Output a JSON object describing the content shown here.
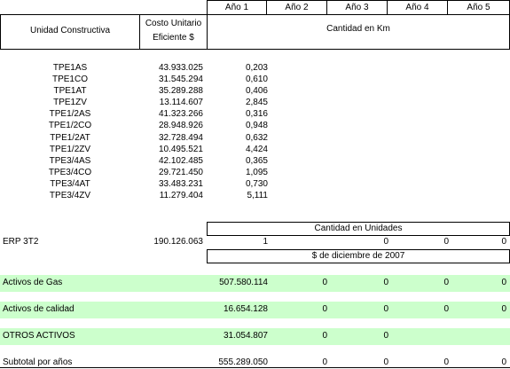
{
  "header": {
    "unit_col": "Unidad Constructiva",
    "cost_col_line1": "Costo Unitario",
    "cost_col_line2": "Eficiente $",
    "years": [
      "Año 1",
      "Año 2",
      "Año 3",
      "Año 4",
      "Año 5"
    ],
    "quantity_km": "Cantidad en Km"
  },
  "rows": [
    {
      "name": "TPE1AS",
      "cost": "43.933.025",
      "km": "0,203"
    },
    {
      "name": "TPE1CO",
      "cost": "31.545.294",
      "km": "0,610"
    },
    {
      "name": "TPE1AT",
      "cost": "35.289.288",
      "km": "0,406"
    },
    {
      "name": "TPE1ZV",
      "cost": "13.114.607",
      "km": "2,845"
    },
    {
      "name": "TPE1/2AS",
      "cost": "41.323.266",
      "km": "0,316"
    },
    {
      "name": "TPE1/2CO",
      "cost": "28.948.926",
      "km": "0,948"
    },
    {
      "name": "TPE1/2AT",
      "cost": "32.728.494",
      "km": "0,632"
    },
    {
      "name": "TPE1/2ZV",
      "cost": "10.495.521",
      "km": "4,424"
    },
    {
      "name": "TPE3/4AS",
      "cost": "42.102.485",
      "km": "0,365"
    },
    {
      "name": "TPE3/4CO",
      "cost": "29.721.450",
      "km": "1,095"
    },
    {
      "name": "TPE3/4AT",
      "cost": "33.483.231",
      "km": "0,730"
    },
    {
      "name": "TPE3/4ZV",
      "cost": "11.279.404",
      "km": "5,111"
    }
  ],
  "units_label": "Cantidad en Unidades",
  "erp": {
    "name": "ERP 3T2",
    "cost": "190.126.063",
    "y1": "1",
    "y3": "0",
    "y4": "0",
    "y5": "0"
  },
  "date_label": "$ de diciembre de 2007",
  "summary": [
    {
      "label": "Activos de Gas",
      "total": "507.580.114",
      "y2": "0",
      "y3": "0",
      "y4": "0",
      "y5": "0"
    },
    {
      "label": "Activos de calidad",
      "total": "16.654.128",
      "y2": "0",
      "y3": "0",
      "y4": "0",
      "y5": "0"
    },
    {
      "label": "OTROS ACTIVOS",
      "total": "31.054.807",
      "y2": "0",
      "y3": "0"
    },
    {
      "label": "Subtotal por años",
      "total": "555.289.050",
      "y2": "0",
      "y3": "0",
      "y4": "0",
      "y5": "0"
    }
  ]
}
